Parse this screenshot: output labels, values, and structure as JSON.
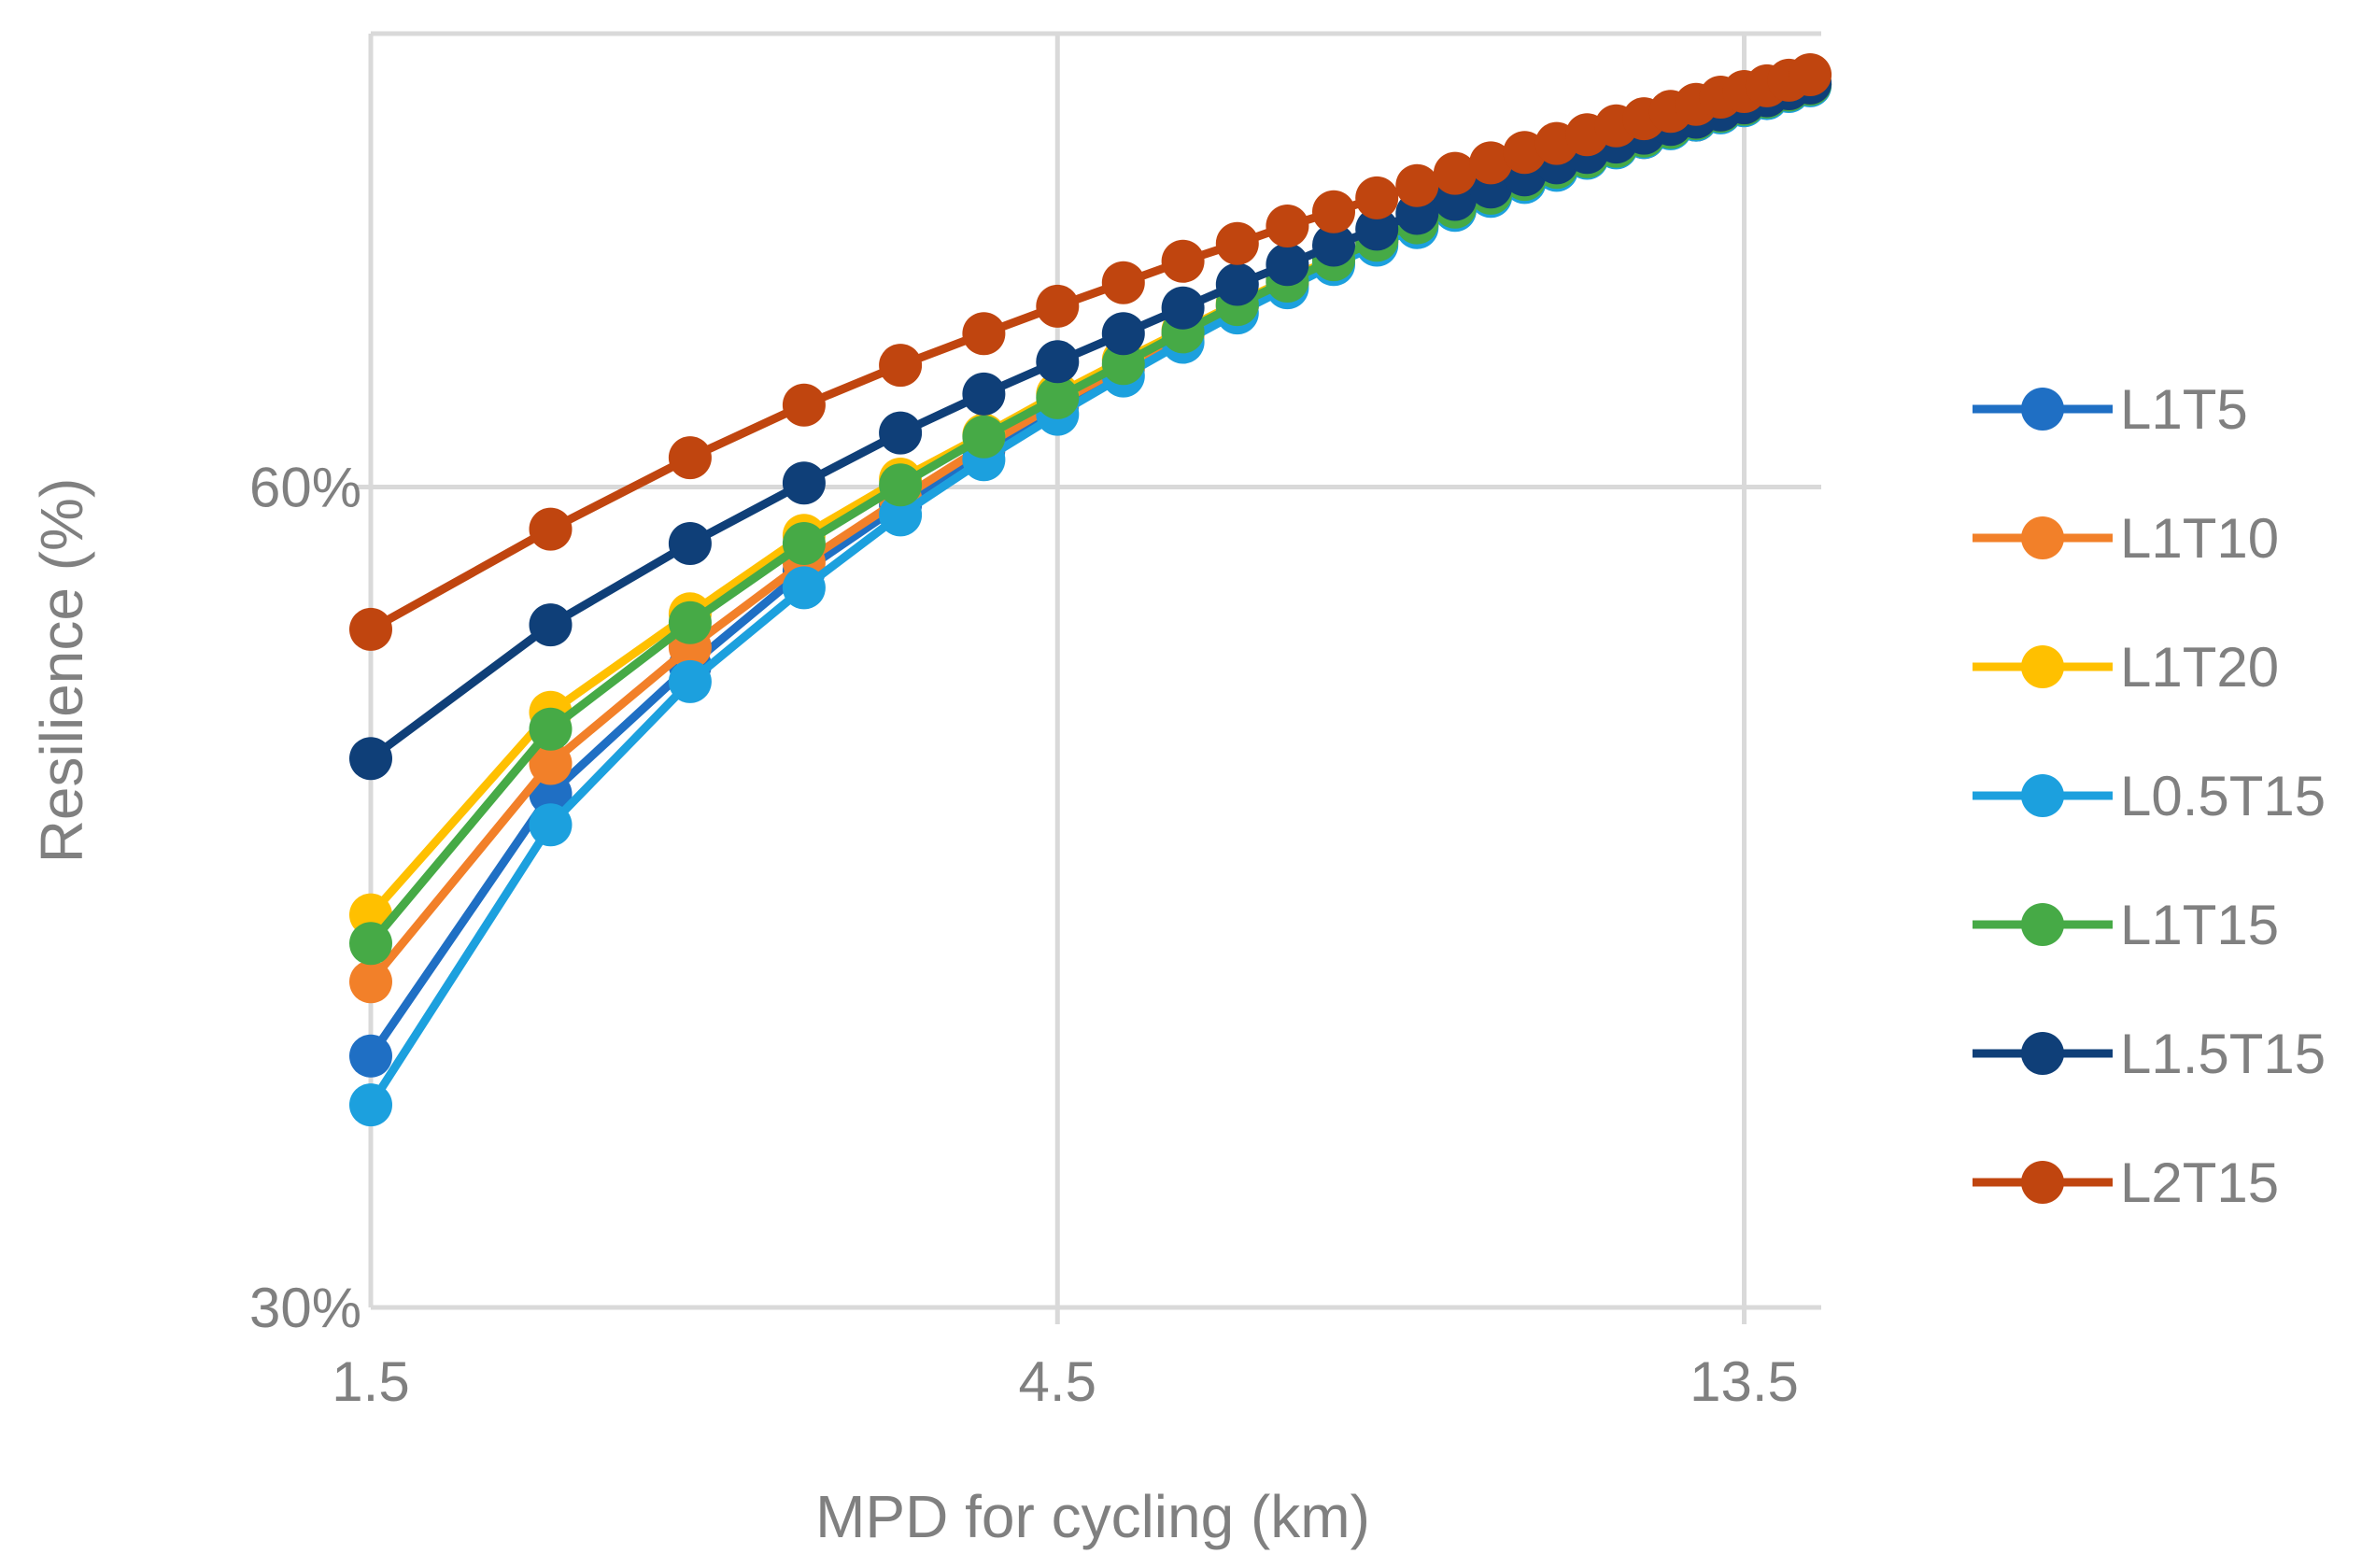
{
  "chart_data": {
    "type": "line",
    "title": "",
    "xlabel": "MPD for cycling (km)",
    "ylabel": "Resilience (%)",
    "x_scale": "log",
    "y_scale": "log",
    "xlim": [
      1.5,
      15.27
    ],
    "ylim": [
      30,
      88
    ],
    "x_ticks": [
      1.5,
      4.5,
      13.5
    ],
    "x_tick_labels": [
      "1.5",
      "4.5",
      "13.5"
    ],
    "y_ticks": [
      30,
      60
    ],
    "y_tick_labels": [
      "30%",
      "60%"
    ],
    "grid": true,
    "legend_position": "right",
    "x": [
      1.5,
      2.0,
      2.5,
      3.0,
      3.5,
      4.0,
      4.5,
      5.0,
      5.5,
      6.0,
      6.5,
      7.0,
      7.5,
      8.0,
      8.5,
      9.0,
      9.5,
      10.0,
      10.5,
      11.0,
      11.5,
      12.0,
      12.5,
      13.0,
      13.5,
      14.0,
      14.5,
      15.0
    ],
    "series": [
      {
        "name": "L1T5",
        "color": "#1F6FC4",
        "values": [
          37.1,
          46.3,
          51.6,
          55.9,
          59.1,
          61.9,
          64.3,
          66.3,
          68.2,
          69.9,
          71.3,
          72.6,
          73.8,
          74.9,
          75.9,
          76.9,
          77.7,
          78.5,
          79.3,
          80.0,
          80.6,
          81.3,
          81.8,
          82.4,
          82.9,
          83.4,
          83.9,
          84.3
        ]
      },
      {
        "name": "L1T10",
        "color": "#F28029",
        "values": [
          39.5,
          47.5,
          52.4,
          56.3,
          59.4,
          62.1,
          64.4,
          66.4,
          68.2,
          69.9,
          71.3,
          72.6,
          73.8,
          74.9,
          75.9,
          76.9,
          77.7,
          78.5,
          79.3,
          80.0,
          80.6,
          81.3,
          81.8,
          82.4,
          82.9,
          83.4,
          83.9,
          84.3
        ]
      },
      {
        "name": "L1T20",
        "color": "#FFC000",
        "values": [
          41.8,
          49.6,
          53.9,
          57.6,
          60.4,
          62.7,
          64.9,
          66.8,
          68.5,
          70.1,
          71.5,
          72.8,
          74.0,
          75.1,
          76.1,
          77.0,
          77.8,
          78.6,
          79.3,
          80.0,
          80.7,
          81.3,
          81.9,
          82.4,
          82.9,
          83.4,
          83.9,
          84.3
        ]
      },
      {
        "name": "L0.5T15",
        "color": "#1CA0DE",
        "values": [
          35.6,
          45.1,
          50.9,
          55.1,
          58.6,
          61.4,
          63.8,
          65.9,
          67.8,
          69.5,
          71.0,
          72.4,
          73.6,
          74.7,
          75.8,
          76.7,
          77.6,
          78.4,
          79.2,
          79.9,
          80.6,
          81.2,
          81.8,
          82.3,
          82.8,
          83.3,
          83.8,
          84.2
        ]
      },
      {
        "name": "L1T15",
        "color": "#46AA46",
        "values": [
          40.8,
          48.9,
          53.5,
          57.2,
          60.1,
          62.6,
          64.7,
          66.6,
          68.4,
          70.0,
          71.4,
          72.7,
          73.9,
          75.0,
          76.0,
          76.9,
          77.8,
          78.6,
          79.3,
          80.0,
          80.7,
          81.3,
          81.9,
          82.4,
          82.9,
          83.4,
          83.9,
          84.3
        ]
      },
      {
        "name": "L1.5T15",
        "color": "#0F3F78",
        "values": [
          47.7,
          53.4,
          57.2,
          60.2,
          62.8,
          64.9,
          66.7,
          68.3,
          69.8,
          71.2,
          72.4,
          73.6,
          74.6,
          75.6,
          76.5,
          77.3,
          78.1,
          78.9,
          79.6,
          80.3,
          80.9,
          81.5,
          82.0,
          82.5,
          83.0,
          83.5,
          84.0,
          84.4
        ]
      },
      {
        "name": "L2T15",
        "color": "#C0450F",
        "values": [
          53.2,
          57.9,
          61.5,
          64.3,
          66.5,
          68.3,
          69.9,
          71.3,
          72.6,
          73.7,
          74.8,
          75.7,
          76.6,
          77.4,
          78.2,
          78.9,
          79.6,
          80.2,
          80.8,
          81.4,
          81.9,
          82.4,
          82.9,
          83.4,
          83.8,
          84.2,
          84.6,
          85.0
        ]
      }
    ]
  }
}
